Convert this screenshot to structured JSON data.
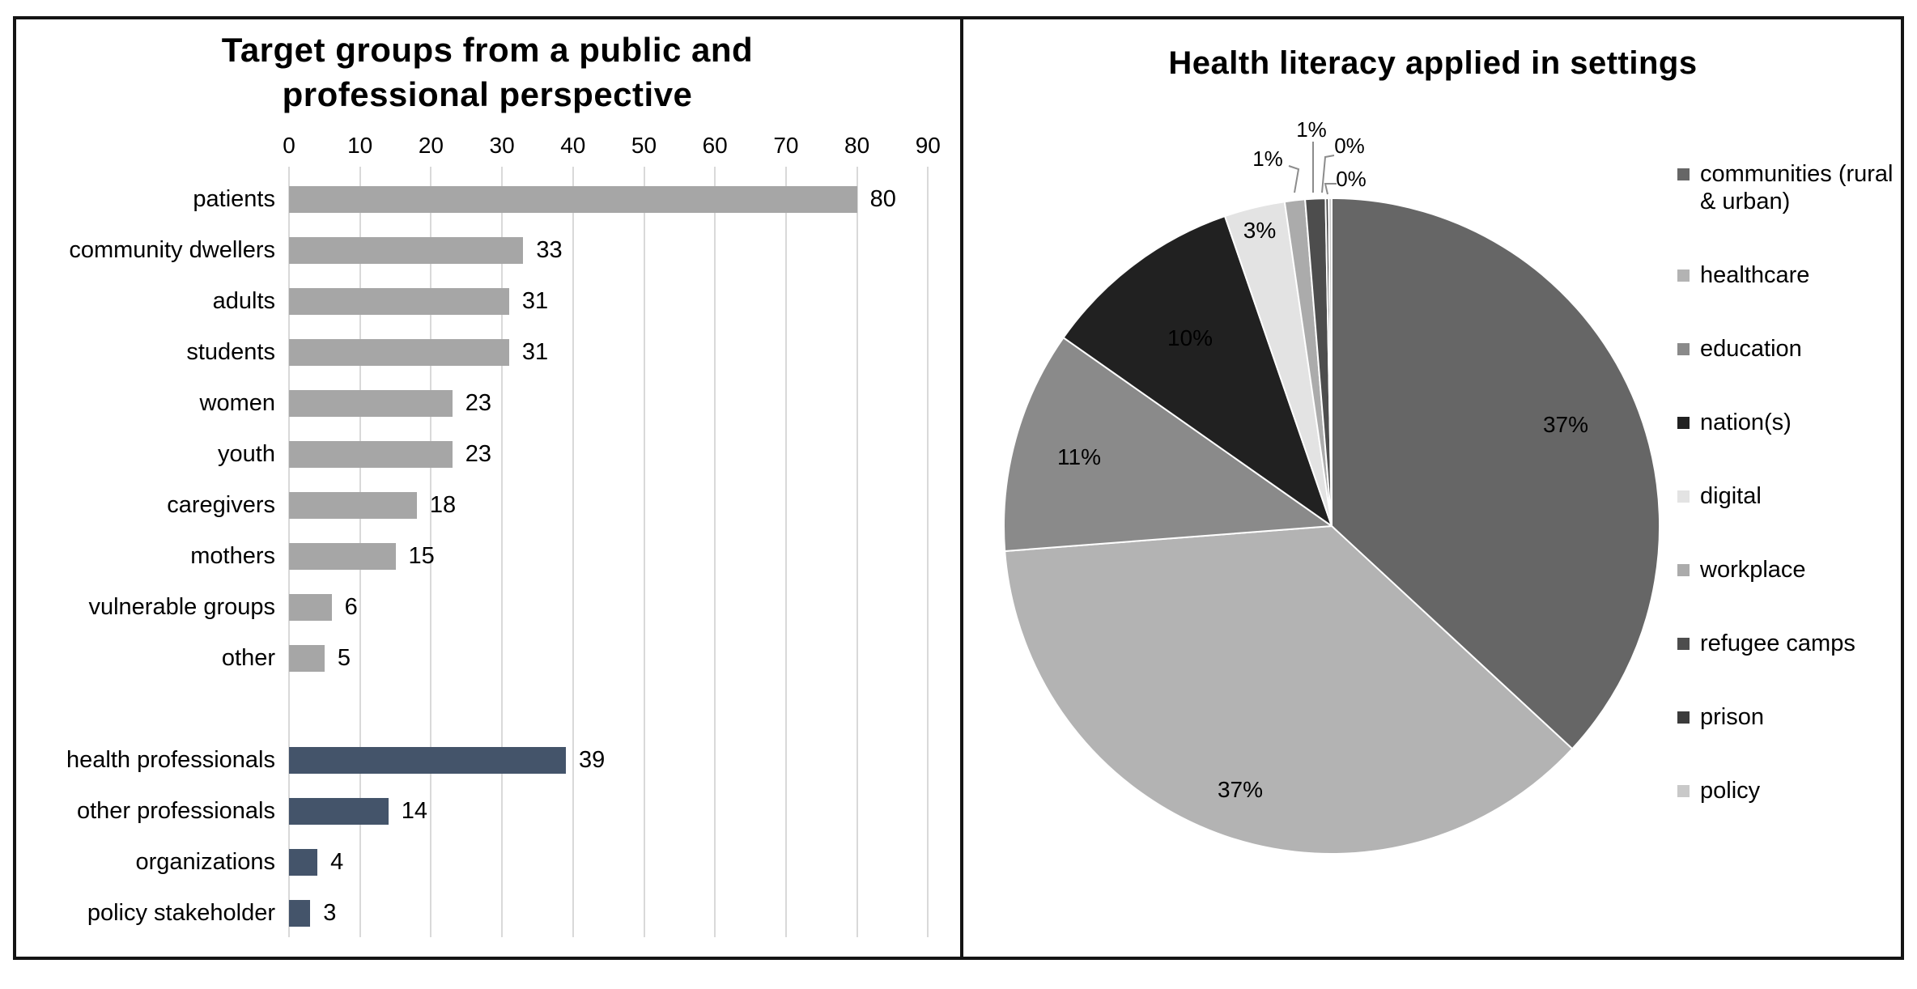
{
  "chart_data": [
    {
      "type": "bar",
      "orientation": "horizontal",
      "title": "Target groups from a public and professional perspective",
      "categories": [
        "patients",
        "community dwellers",
        "adults",
        "students",
        "women",
        "youth",
        "caregivers",
        "mothers",
        "vulnerable groups",
        "other",
        "health professionals",
        "other professionals",
        "organizations",
        "policy stakeholder"
      ],
      "values": [
        80,
        33,
        31,
        31,
        23,
        23,
        18,
        15,
        6,
        5,
        39,
        14,
        4,
        3
      ],
      "series_group": [
        "public",
        "public",
        "public",
        "public",
        "public",
        "public",
        "public",
        "public",
        "public",
        "public",
        "professional",
        "professional",
        "professional",
        "professional"
      ],
      "group_colors": {
        "public": "#A6A6A6",
        "professional": "#44546A"
      },
      "x_ticks": [
        0,
        10,
        20,
        30,
        40,
        50,
        60,
        70,
        80,
        90
      ],
      "xlim": [
        0,
        90
      ],
      "grid": true,
      "data_labels": true,
      "gridline_color": "#D9D9D9"
    },
    {
      "type": "pie",
      "title": "Health literacy applied in settings",
      "labels": [
        "communities (rural & urban)",
        "healthcare",
        "education",
        "nation(s)",
        "digital",
        "workplace",
        "refugee camps",
        "prison",
        "policy"
      ],
      "values": [
        37,
        37,
        11,
        10,
        3,
        1,
        1,
        0,
        0
      ],
      "display_labels": [
        "37%",
        "37%",
        "11%",
        "10%",
        "3%",
        "1%",
        "1%",
        "0%",
        "0%"
      ],
      "colors": [
        "#666666",
        "#B3B3B3",
        "#8A8A8A",
        "#212121",
        "#E3E3E3",
        "#ABABAB",
        "#4D4D4D",
        "#3B3B3B",
        "#C9C9C9"
      ],
      "legend_position": "right",
      "start_angle_deg": 0,
      "direction": "clockwise",
      "slice_border_color": "#FFFFFF"
    }
  ]
}
